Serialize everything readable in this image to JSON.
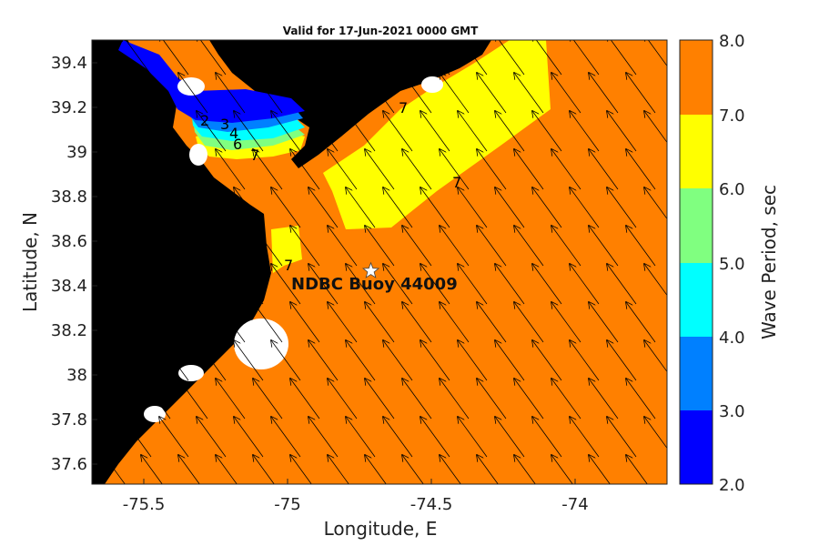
{
  "title": "Valid for 17-Jun-2021 0000 GMT",
  "xlabel": "Longitude, E",
  "ylabel": "Latitude, N",
  "colorbar_label": "Wave Period, sec",
  "x_ticks": [
    "-75.5",
    "-75",
    "-74.5",
    "-74"
  ],
  "y_ticks": [
    "39.4",
    "39.2",
    "39",
    "38.8",
    "38.6",
    "38.4",
    "38.2",
    "38",
    "37.8",
    "37.6"
  ],
  "colorbar_ticks": [
    "8.0",
    "7.0",
    "6.0",
    "5.0",
    "4.0",
    "3.0",
    "2.0"
  ],
  "contour_labels": [
    "2",
    "3",
    "4",
    "6",
    "7",
    "7",
    "7",
    "7"
  ],
  "station": {
    "name": "NDBC Buoy 44009",
    "lon": -74.7,
    "lat": 38.46
  },
  "colors": {
    "land": "#000000",
    "period_2_3": "#0000ff",
    "period_3_4": "#0080ff",
    "period_4_5": "#00ffff",
    "period_5_6": "#80ff80",
    "period_6_7": "#ffff00",
    "period_7_8": "#ff8000",
    "missing": "#ffffff",
    "arrows": "#000000"
  },
  "chart_data": {
    "type": "heatmap",
    "title": "Valid for 17-Jun-2021 0000 GMT",
    "xlabel": "Longitude, E",
    "ylabel": "Latitude, N",
    "xlim": [
      -75.67,
      -73.67
    ],
    "ylim": [
      37.5,
      39.5
    ],
    "colorbar": {
      "label": "Wave Period, sec",
      "range": [
        2.0,
        8.0
      ],
      "levels": [
        2,
        3,
        4,
        5,
        6,
        7,
        8
      ]
    },
    "dominant_period_offshore": "7-8",
    "arrow_direction": "pointing northwest",
    "station": {
      "name": "NDBC Buoy 44009",
      "lon": -74.7,
      "lat": 38.46
    }
  }
}
